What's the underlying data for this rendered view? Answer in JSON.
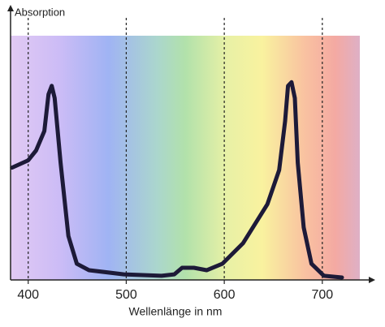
{
  "chart_data": {
    "type": "line",
    "xlabel": "Wellenlänge in nm",
    "ylabel": "Absorption",
    "x": [
      383.5,
      400,
      408,
      416.5,
      420.7,
      424,
      427,
      433,
      441,
      449.6,
      462,
      497.5,
      536,
      549,
      557,
      569,
      582,
      598,
      619,
      644,
      656,
      662,
      665,
      668.6,
      672,
      675,
      681,
      689,
      701.6,
      720
    ],
    "series": [
      {
        "name": "Absorption",
        "color": "#1d1a38",
        "values": [
          0.46,
          0.49,
          0.53,
          0.61,
          0.76,
          0.795,
          0.745,
          0.48,
          0.18,
          0.066,
          0.04,
          0.023,
          0.017,
          0.023,
          0.05,
          0.05,
          0.04,
          0.066,
          0.15,
          0.31,
          0.45,
          0.65,
          0.795,
          0.81,
          0.745,
          0.48,
          0.215,
          0.066,
          0.017,
          0.01
        ]
      }
    ],
    "xlim": [
      382,
      754
    ],
    "ylim": [
      0,
      1.12
    ],
    "xticks": [
      400,
      500,
      600,
      700
    ],
    "grid": true
  }
}
